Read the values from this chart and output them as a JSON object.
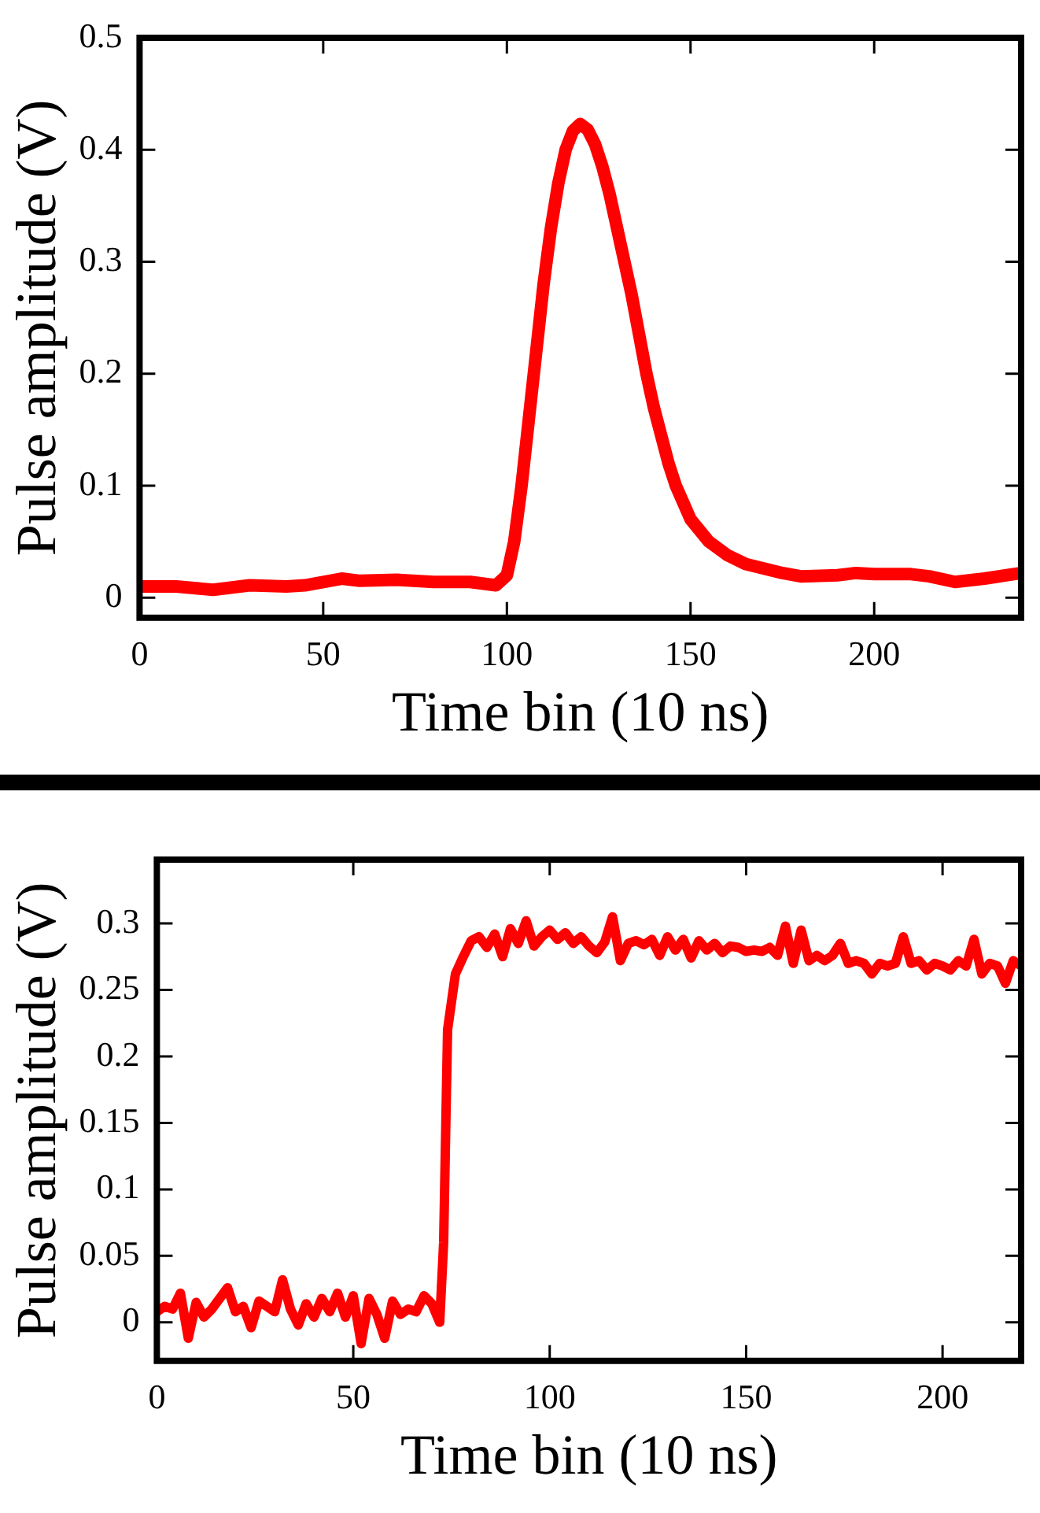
{
  "chart_data": [
    {
      "type": "line",
      "xlabel": "Time bin (10 ns)",
      "ylabel": "Pulse amplitude (V)",
      "x": [
        0,
        10,
        20,
        30,
        40,
        45,
        55,
        60,
        70,
        80,
        90,
        97,
        100,
        102,
        104,
        106,
        108,
        110,
        112,
        114,
        116,
        118,
        120,
        122,
        124,
        126,
        128,
        130,
        132,
        134,
        136,
        138,
        140,
        142,
        144,
        146,
        148,
        150,
        155,
        160,
        165,
        170,
        175,
        180,
        190,
        195,
        200,
        210,
        215,
        222,
        230,
        240
      ],
      "series": [
        {
          "color": "#ff0000",
          "values": [
            0.01,
            0.01,
            0.007,
            0.011,
            0.01,
            0.011,
            0.017,
            0.015,
            0.016,
            0.014,
            0.014,
            0.011,
            0.02,
            0.05,
            0.1,
            0.16,
            0.22,
            0.28,
            0.33,
            0.37,
            0.4,
            0.417,
            0.423,
            0.418,
            0.405,
            0.385,
            0.36,
            0.33,
            0.3,
            0.27,
            0.235,
            0.2,
            0.17,
            0.145,
            0.12,
            0.1,
            0.085,
            0.07,
            0.05,
            0.038,
            0.03,
            0.026,
            0.022,
            0.019,
            0.02,
            0.022,
            0.021,
            0.021,
            0.019,
            0.014,
            0.017,
            0.022
          ]
        }
      ],
      "xlim": [
        0,
        240
      ],
      "ylim": [
        -0.018,
        0.5
      ],
      "xticks": [
        0,
        50,
        100,
        150,
        200
      ],
      "yticks": [
        0,
        0.1,
        0.2,
        0.3,
        0.4,
        0.5
      ]
    },
    {
      "type": "line",
      "xlabel": "Time bin (10 ns)",
      "ylabel": "Pulse amplitude (V)",
      "x": [
        0,
        2,
        4,
        6,
        8,
        10,
        12,
        14,
        16,
        18,
        20,
        22,
        24,
        26,
        28,
        30,
        32,
        34,
        36,
        38,
        40,
        42,
        44,
        46,
        48,
        50,
        52,
        54,
        56,
        58,
        60,
        62,
        64,
        66,
        68,
        70,
        72,
        73,
        74,
        76,
        78,
        80,
        82,
        84,
        86,
        88,
        90,
        92,
        94,
        96,
        98,
        100,
        102,
        104,
        106,
        108,
        110,
        112,
        114,
        116,
        118,
        120,
        122,
        124,
        126,
        128,
        130,
        132,
        134,
        136,
        138,
        140,
        142,
        144,
        146,
        148,
        150,
        152,
        154,
        156,
        158,
        160,
        162,
        164,
        166,
        168,
        170,
        172,
        174,
        176,
        178,
        180,
        182,
        184,
        186,
        188,
        190,
        192,
        194,
        196,
        198,
        200,
        202,
        204,
        206,
        208,
        210,
        212,
        214,
        216,
        218,
        220
      ],
      "series": [
        {
          "color": "#ff0000",
          "values": [
            0.008,
            0.012,
            0.01,
            0.022,
            -0.012,
            0.015,
            0.004,
            0.01,
            0.018,
            0.026,
            0.008,
            0.012,
            -0.004,
            0.016,
            0.012,
            0.008,
            0.032,
            0.01,
            -0.002,
            0.014,
            0.004,
            0.018,
            0.008,
            0.022,
            0.004,
            0.02,
            -0.016,
            0.018,
            0.006,
            -0.012,
            0.016,
            0.006,
            0.01,
            0.008,
            0.02,
            0.014,
            0.0,
            0.06,
            0.22,
            0.262,
            0.275,
            0.287,
            0.29,
            0.282,
            0.292,
            0.275,
            0.296,
            0.285,
            0.302,
            0.283,
            0.29,
            0.295,
            0.288,
            0.293,
            0.285,
            0.29,
            0.283,
            0.278,
            0.286,
            0.305,
            0.272,
            0.285,
            0.287,
            0.284,
            0.288,
            0.276,
            0.29,
            0.28,
            0.288,
            0.274,
            0.287,
            0.28,
            0.285,
            0.278,
            0.283,
            0.282,
            0.279,
            0.28,
            0.279,
            0.282,
            0.276,
            0.298,
            0.27,
            0.295,
            0.272,
            0.276,
            0.272,
            0.276,
            0.285,
            0.27,
            0.272,
            0.27,
            0.262,
            0.27,
            0.268,
            0.27,
            0.29,
            0.27,
            0.272,
            0.265,
            0.27,
            0.268,
            0.265,
            0.272,
            0.268,
            0.288,
            0.262,
            0.27,
            0.268,
            0.255,
            0.272,
            0.268
          ]
        }
      ],
      "xlim": [
        0,
        220
      ],
      "ylim": [
        -0.029,
        0.348
      ],
      "xticks": [
        0,
        50,
        100,
        150,
        200
      ],
      "yticks": [
        0,
        0.05,
        0.1,
        0.15,
        0.2,
        0.25,
        0.3
      ]
    }
  ]
}
